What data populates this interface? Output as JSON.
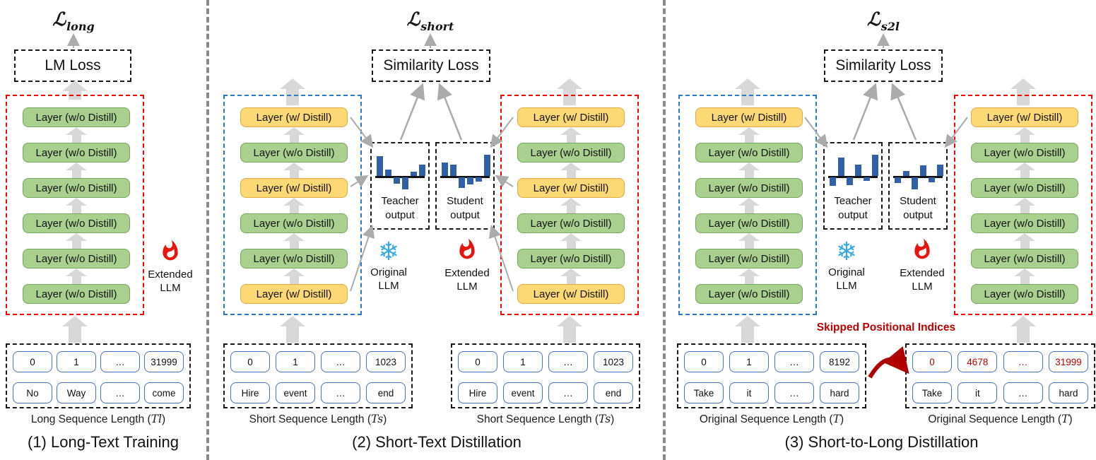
{
  "colors": {
    "layer_green": "#a9d08e",
    "layer_green_border": "#74a85c",
    "layer_yellow": "#fcd975",
    "layer_yellow_border": "#e0ab45",
    "stack_red_border": "#ff0000",
    "stack_blue_border": "#2879cc",
    "bar_blue": "#3060a8",
    "accent_red_text": "#c00000",
    "snowflake_blue": "#35aae3",
    "flame_red": "#e8150d",
    "block_arrow_gray": "#d8d8d8",
    "connector_gray": "#ababab"
  },
  "icons": {
    "snowflake": "❄"
  },
  "panel1": {
    "loss_symbol": "ℒ",
    "loss_subscript": "long",
    "loss_box_label": "LM Loss",
    "stack": [
      {
        "label": "Layer (w/o Distill)",
        "distill": false
      },
      {
        "label": "Layer (w/o Distill)",
        "distill": false
      },
      {
        "label": "Layer (w/o Distill)",
        "distill": false
      },
      {
        "label": "Layer (w/o Distill)",
        "distill": false
      },
      {
        "label": "Layer (w/o Distill)",
        "distill": false
      },
      {
        "label": "Layer (w/o Distill)",
        "distill": false
      }
    ],
    "model": {
      "line1": "Extended",
      "line2": "LLM"
    },
    "tokens": {
      "pos": [
        "0",
        "1",
        "…",
        "31999"
      ],
      "words": [
        "No",
        "Way",
        "…",
        "come"
      ]
    },
    "seq_prefix": "Long Sequence Length (",
    "seq_var": "Tl",
    "seq_suffix": ")",
    "caption": "(1) Long-Text Training"
  },
  "panel2": {
    "loss_symbol": "ℒ",
    "loss_subscript": "short",
    "loss_box_label": "Similarity Loss",
    "teacher_stack": [
      {
        "label": "Layer (w/ Distill)",
        "distill": true
      },
      {
        "label": "Layer (w/o Distill)",
        "distill": false
      },
      {
        "label": "Layer (w/ Distill)",
        "distill": true
      },
      {
        "label": "Layer (w/o Distill)",
        "distill": false
      },
      {
        "label": "Layer (w/o Distill)",
        "distill": false
      },
      {
        "label": "Layer (w/ Distill)",
        "distill": true
      }
    ],
    "student_stack": [
      {
        "label": "Layer (w/ Distill)",
        "distill": true
      },
      {
        "label": "Layer (w/o Distill)",
        "distill": false
      },
      {
        "label": "Layer (w/ Distill)",
        "distill": true
      },
      {
        "label": "Layer (w/o Distill)",
        "distill": false
      },
      {
        "label": "Layer (w/o Distill)",
        "distill": false
      },
      {
        "label": "Layer (w/ Distill)",
        "distill": true
      }
    ],
    "teacher_output_label": "Teacher output",
    "student_output_label": "Student output",
    "teacher_bars": [
      28,
      9,
      -9,
      -17,
      6,
      16
    ],
    "student_bars": [
      19,
      16,
      -15,
      -10,
      -6,
      30
    ],
    "original_model": {
      "line1": "Original",
      "line2": "LLM"
    },
    "extended_model": {
      "line1": "Extended",
      "line2": "LLM"
    },
    "tokens_left": {
      "pos": [
        "0",
        "1",
        "…",
        "1023"
      ],
      "words": [
        "Hire",
        "event",
        "…",
        "end"
      ]
    },
    "tokens_right": {
      "pos": [
        "0",
        "1",
        "…",
        "1023"
      ],
      "words": [
        "Hire",
        "event",
        "…",
        "end"
      ]
    },
    "seq_prefix": "Short Sequence Length (",
    "seq_var": "Ts",
    "seq_suffix": ")",
    "caption": "(2) Short-Text Distillation"
  },
  "panel3": {
    "loss_symbol": "ℒ",
    "loss_subscript": "s2l",
    "loss_box_label": "Similarity Loss",
    "teacher_stack": [
      {
        "label": "Layer (w/ Distill)",
        "distill": true
      },
      {
        "label": "Layer (w/o Distill)",
        "distill": false
      },
      {
        "label": "Layer (w/o Distill)",
        "distill": false
      },
      {
        "label": "Layer (w/o Distill)",
        "distill": false
      },
      {
        "label": "Layer (w/o Distill)",
        "distill": false
      },
      {
        "label": "Layer (w/o Distill)",
        "distill": false
      }
    ],
    "student_stack": [
      {
        "label": "Layer (w/ Distill)",
        "distill": true
      },
      {
        "label": "Layer (w/o Distill)",
        "distill": false
      },
      {
        "label": "Layer (w/o Distill)",
        "distill": false
      },
      {
        "label": "Layer (w/o Distill)",
        "distill": false
      },
      {
        "label": "Layer (w/o Distill)",
        "distill": false
      },
      {
        "label": "Layer (w/o Distill)",
        "distill": false
      }
    ],
    "teacher_output_label": "Teacher output",
    "student_output_label": "Student output",
    "teacher_bars": [
      -12,
      26,
      -11,
      16,
      -5,
      30
    ],
    "student_bars": [
      -8,
      7,
      -17,
      15,
      -7,
      16
    ],
    "original_model": {
      "line1": "Original",
      "line2": "LLM"
    },
    "extended_model": {
      "line1": "Extended",
      "line2": "LLM"
    },
    "skipped_label": "Skipped Positional Indices",
    "tokens_left": {
      "pos": [
        "0",
        "1",
        "…",
        "8192"
      ],
      "words": [
        "Take",
        "it",
        "…",
        "hard"
      ]
    },
    "tokens_right": {
      "pos": [
        "0",
        "4678",
        "…",
        "31999"
      ],
      "pos_red": true,
      "words": [
        "Take",
        "it",
        "…",
        "hard"
      ]
    },
    "seq_prefix": "Original Sequence Length (",
    "seq_var": "T",
    "seq_suffix": ")",
    "caption": "(3) Short-to-Long Distillation"
  }
}
